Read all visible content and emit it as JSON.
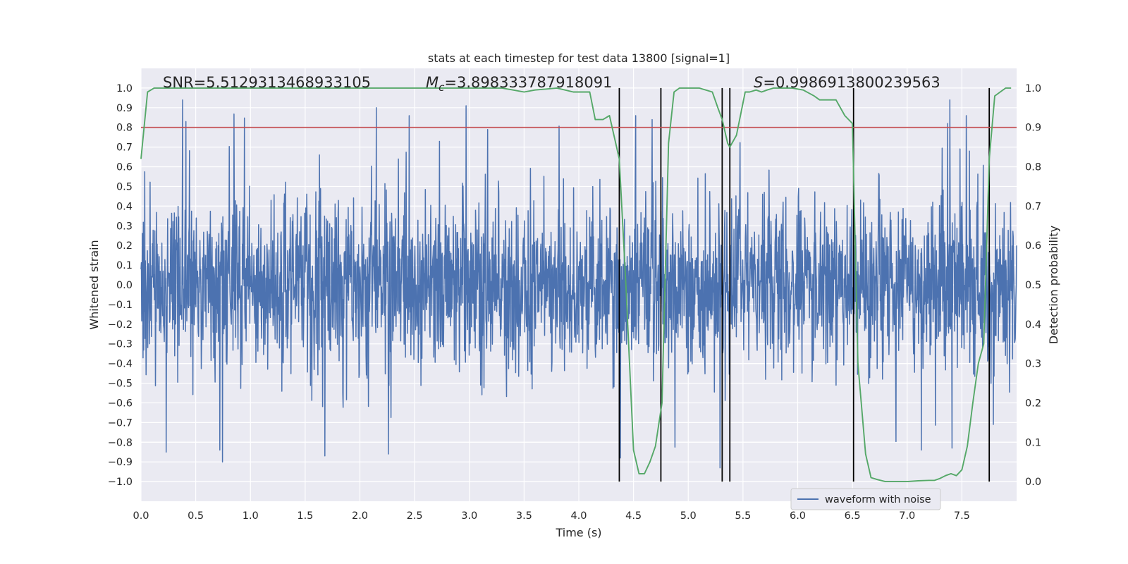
{
  "chart_data": {
    "type": "line",
    "title": "stats at each timestep for test data 13800 [signal=1]",
    "xlabel": "Time (s)",
    "ylabel": "Whitened strain",
    "y2label": "Detection probability",
    "xlim": [
      0.0,
      8.0
    ],
    "ylim": [
      -1.1,
      1.1
    ],
    "y2lim": [
      -0.05,
      1.05
    ],
    "xticks": [
      0.0,
      0.5,
      1.0,
      1.5,
      2.0,
      2.5,
      3.0,
      3.5,
      4.0,
      4.5,
      5.0,
      5.5,
      6.0,
      6.5,
      7.0,
      7.5
    ],
    "xtick_labels": [
      "0.0",
      "0.5",
      "1.0",
      "1.5",
      "2.0",
      "2.5",
      "3.0",
      "3.5",
      "4.0",
      "4.5",
      "5.0",
      "5.5",
      "6.0",
      "6.5",
      "7.0",
      "7.5"
    ],
    "yticks": [
      1.0,
      0.9,
      0.8,
      0.7,
      0.6,
      0.5,
      0.4,
      0.3,
      0.2,
      0.1,
      0.0,
      -0.1,
      -0.2,
      -0.3,
      -0.4,
      -0.5,
      -0.6,
      -0.7,
      -0.8,
      -0.9,
      -1.0
    ],
    "ytick_labels": [
      "1.0",
      "0.9",
      "0.8",
      "0.7",
      "0.6",
      "0.5",
      "0.4",
      "0.3",
      "0.2",
      "0.1",
      "0.0",
      "−0.1",
      "−0.2",
      "−0.3",
      "−0.4",
      "−0.5",
      "−0.6",
      "−0.7",
      "−0.8",
      "−0.9",
      "−1.0"
    ],
    "y2ticks": [
      1.0,
      0.9,
      0.8,
      0.7,
      0.6,
      0.5,
      0.4,
      0.3,
      0.2,
      0.1,
      0.0
    ],
    "y2tick_labels": [
      "1.0",
      "0.9",
      "0.8",
      "0.7",
      "0.6",
      "0.5",
      "0.4",
      "0.3",
      "0.2",
      "0.1",
      "0.0"
    ],
    "annotations": {
      "snr": "SNR=5.5129313468933105",
      "mc_prefix": "M",
      "mc_sub": "c",
      "mc_value": "=3.898333787918091",
      "s_prefix": "S",
      "s_value": "=0.9986913800239563"
    },
    "threshold": {
      "value": 0.9,
      "axis": "right",
      "color": "#c44e52"
    },
    "vertical_lines": [
      4.37,
      4.75,
      5.31,
      5.38,
      6.51,
      7.75
    ],
    "series": [
      {
        "name": "waveform with noise",
        "color": "#4c72b0",
        "style": "dense noise, envelope approx ±0.4 with peaks reaching 0.94 and −0.93",
        "peaks": [
          {
            "x": 0.38,
            "y": 0.94
          },
          {
            "x": 0.41,
            "y": 0.83
          },
          {
            "x": 1.63,
            "y": 0.66
          },
          {
            "x": 2.15,
            "y": 0.9
          },
          {
            "x": 2.45,
            "y": 0.86
          },
          {
            "x": 2.97,
            "y": 0.91
          },
          {
            "x": 4.52,
            "y": 0.86
          },
          {
            "x": 4.67,
            "y": 0.84
          },
          {
            "x": 7.37,
            "y": 0.82
          },
          {
            "x": 7.39,
            "y": 0.94
          },
          {
            "x": 7.54,
            "y": 0.86
          }
        ],
        "troughs": [
          {
            "x": 0.23,
            "y": -0.85
          },
          {
            "x": 0.72,
            "y": -0.84
          },
          {
            "x": 1.68,
            "y": -0.87
          },
          {
            "x": 2.26,
            "y": -0.86
          },
          {
            "x": 4.38,
            "y": -0.88
          },
          {
            "x": 5.29,
            "y": -0.93
          },
          {
            "x": 7.13,
            "y": -0.84
          },
          {
            "x": 7.41,
            "y": -0.83
          }
        ]
      },
      {
        "name": "detection probability",
        "axis": "right",
        "color": "#55a868",
        "x": [
          0.0,
          0.06,
          0.12,
          0.2,
          1.0,
          2.0,
          3.0,
          3.3,
          3.5,
          3.6,
          3.8,
          3.95,
          4.0,
          4.05,
          4.1,
          4.15,
          4.22,
          4.28,
          4.37,
          4.43,
          4.5,
          4.55,
          4.6,
          4.65,
          4.7,
          4.76,
          4.82,
          4.87,
          4.92,
          5.0,
          5.1,
          5.22,
          5.27,
          5.31,
          5.36,
          5.38,
          5.44,
          5.52,
          5.56,
          5.62,
          5.67,
          5.72,
          5.78,
          5.85,
          5.95,
          6.05,
          6.15,
          6.2,
          6.27,
          6.35,
          6.43,
          6.5,
          6.55,
          6.62,
          6.67,
          6.73,
          6.8,
          6.9,
          7.0,
          7.1,
          7.2,
          7.25,
          7.3,
          7.35,
          7.4,
          7.45,
          7.5,
          7.55,
          7.6,
          7.65,
          7.7,
          7.75,
          7.8,
          7.85,
          7.9,
          7.95
        ],
        "values": [
          0.82,
          0.99,
          1.0,
          1.0,
          1.0,
          1.0,
          1.0,
          1.0,
          0.99,
          0.995,
          1.0,
          0.99,
          0.99,
          0.99,
          0.99,
          0.92,
          0.92,
          0.93,
          0.82,
          0.5,
          0.08,
          0.02,
          0.02,
          0.05,
          0.09,
          0.2,
          0.86,
          0.99,
          1.0,
          1.0,
          1.0,
          0.99,
          0.95,
          0.92,
          0.86,
          0.85,
          0.88,
          0.99,
          0.99,
          0.995,
          0.99,
          0.995,
          1.0,
          1.0,
          1.0,
          0.995,
          0.98,
          0.97,
          0.97,
          0.97,
          0.93,
          0.91,
          0.3,
          0.07,
          0.01,
          0.005,
          0.0,
          0.0,
          0.0,
          0.002,
          0.003,
          0.003,
          0.008,
          0.015,
          0.02,
          0.015,
          0.03,
          0.09,
          0.2,
          0.3,
          0.35,
          0.82,
          0.98,
          0.99,
          1.0,
          1.0
        ]
      }
    ],
    "legend": {
      "labels": [
        "waveform with noise"
      ],
      "placement": "lower-right"
    }
  },
  "colors": {
    "axes_bg": "#eaeaf2",
    "grid": "#ffffff",
    "waveform": "#4c72b0",
    "probability": "#55a868",
    "threshold": "#c44e52",
    "vline": "#000000"
  }
}
